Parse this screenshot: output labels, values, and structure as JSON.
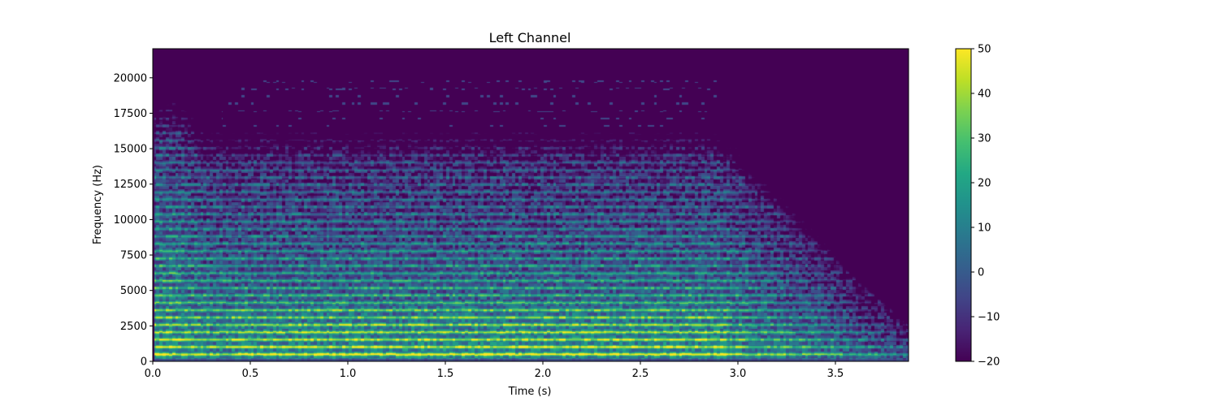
{
  "chart_data": {
    "type": "heatmap",
    "title": "Left Channel",
    "xlabel": "Time (s)",
    "ylabel": "Frequency (Hz)",
    "xlim": [
      0.0,
      3.875
    ],
    "ylim": [
      0,
      22050
    ],
    "x_ticks": [
      "0.0",
      "0.5",
      "1.0",
      "1.5",
      "2.0",
      "2.5",
      "3.0",
      "3.5"
    ],
    "y_ticks": [
      "0",
      "2500",
      "5000",
      "7500",
      "10000",
      "12500",
      "15000",
      "17500",
      "20000"
    ],
    "colorbar": {
      "colormap": "viridis",
      "range": [
        -20,
        50
      ],
      "ticks": [
        "−20",
        "−10",
        "0",
        "10",
        "20",
        "30",
        "40",
        "50"
      ]
    },
    "grid": false,
    "legend": "none"
  }
}
